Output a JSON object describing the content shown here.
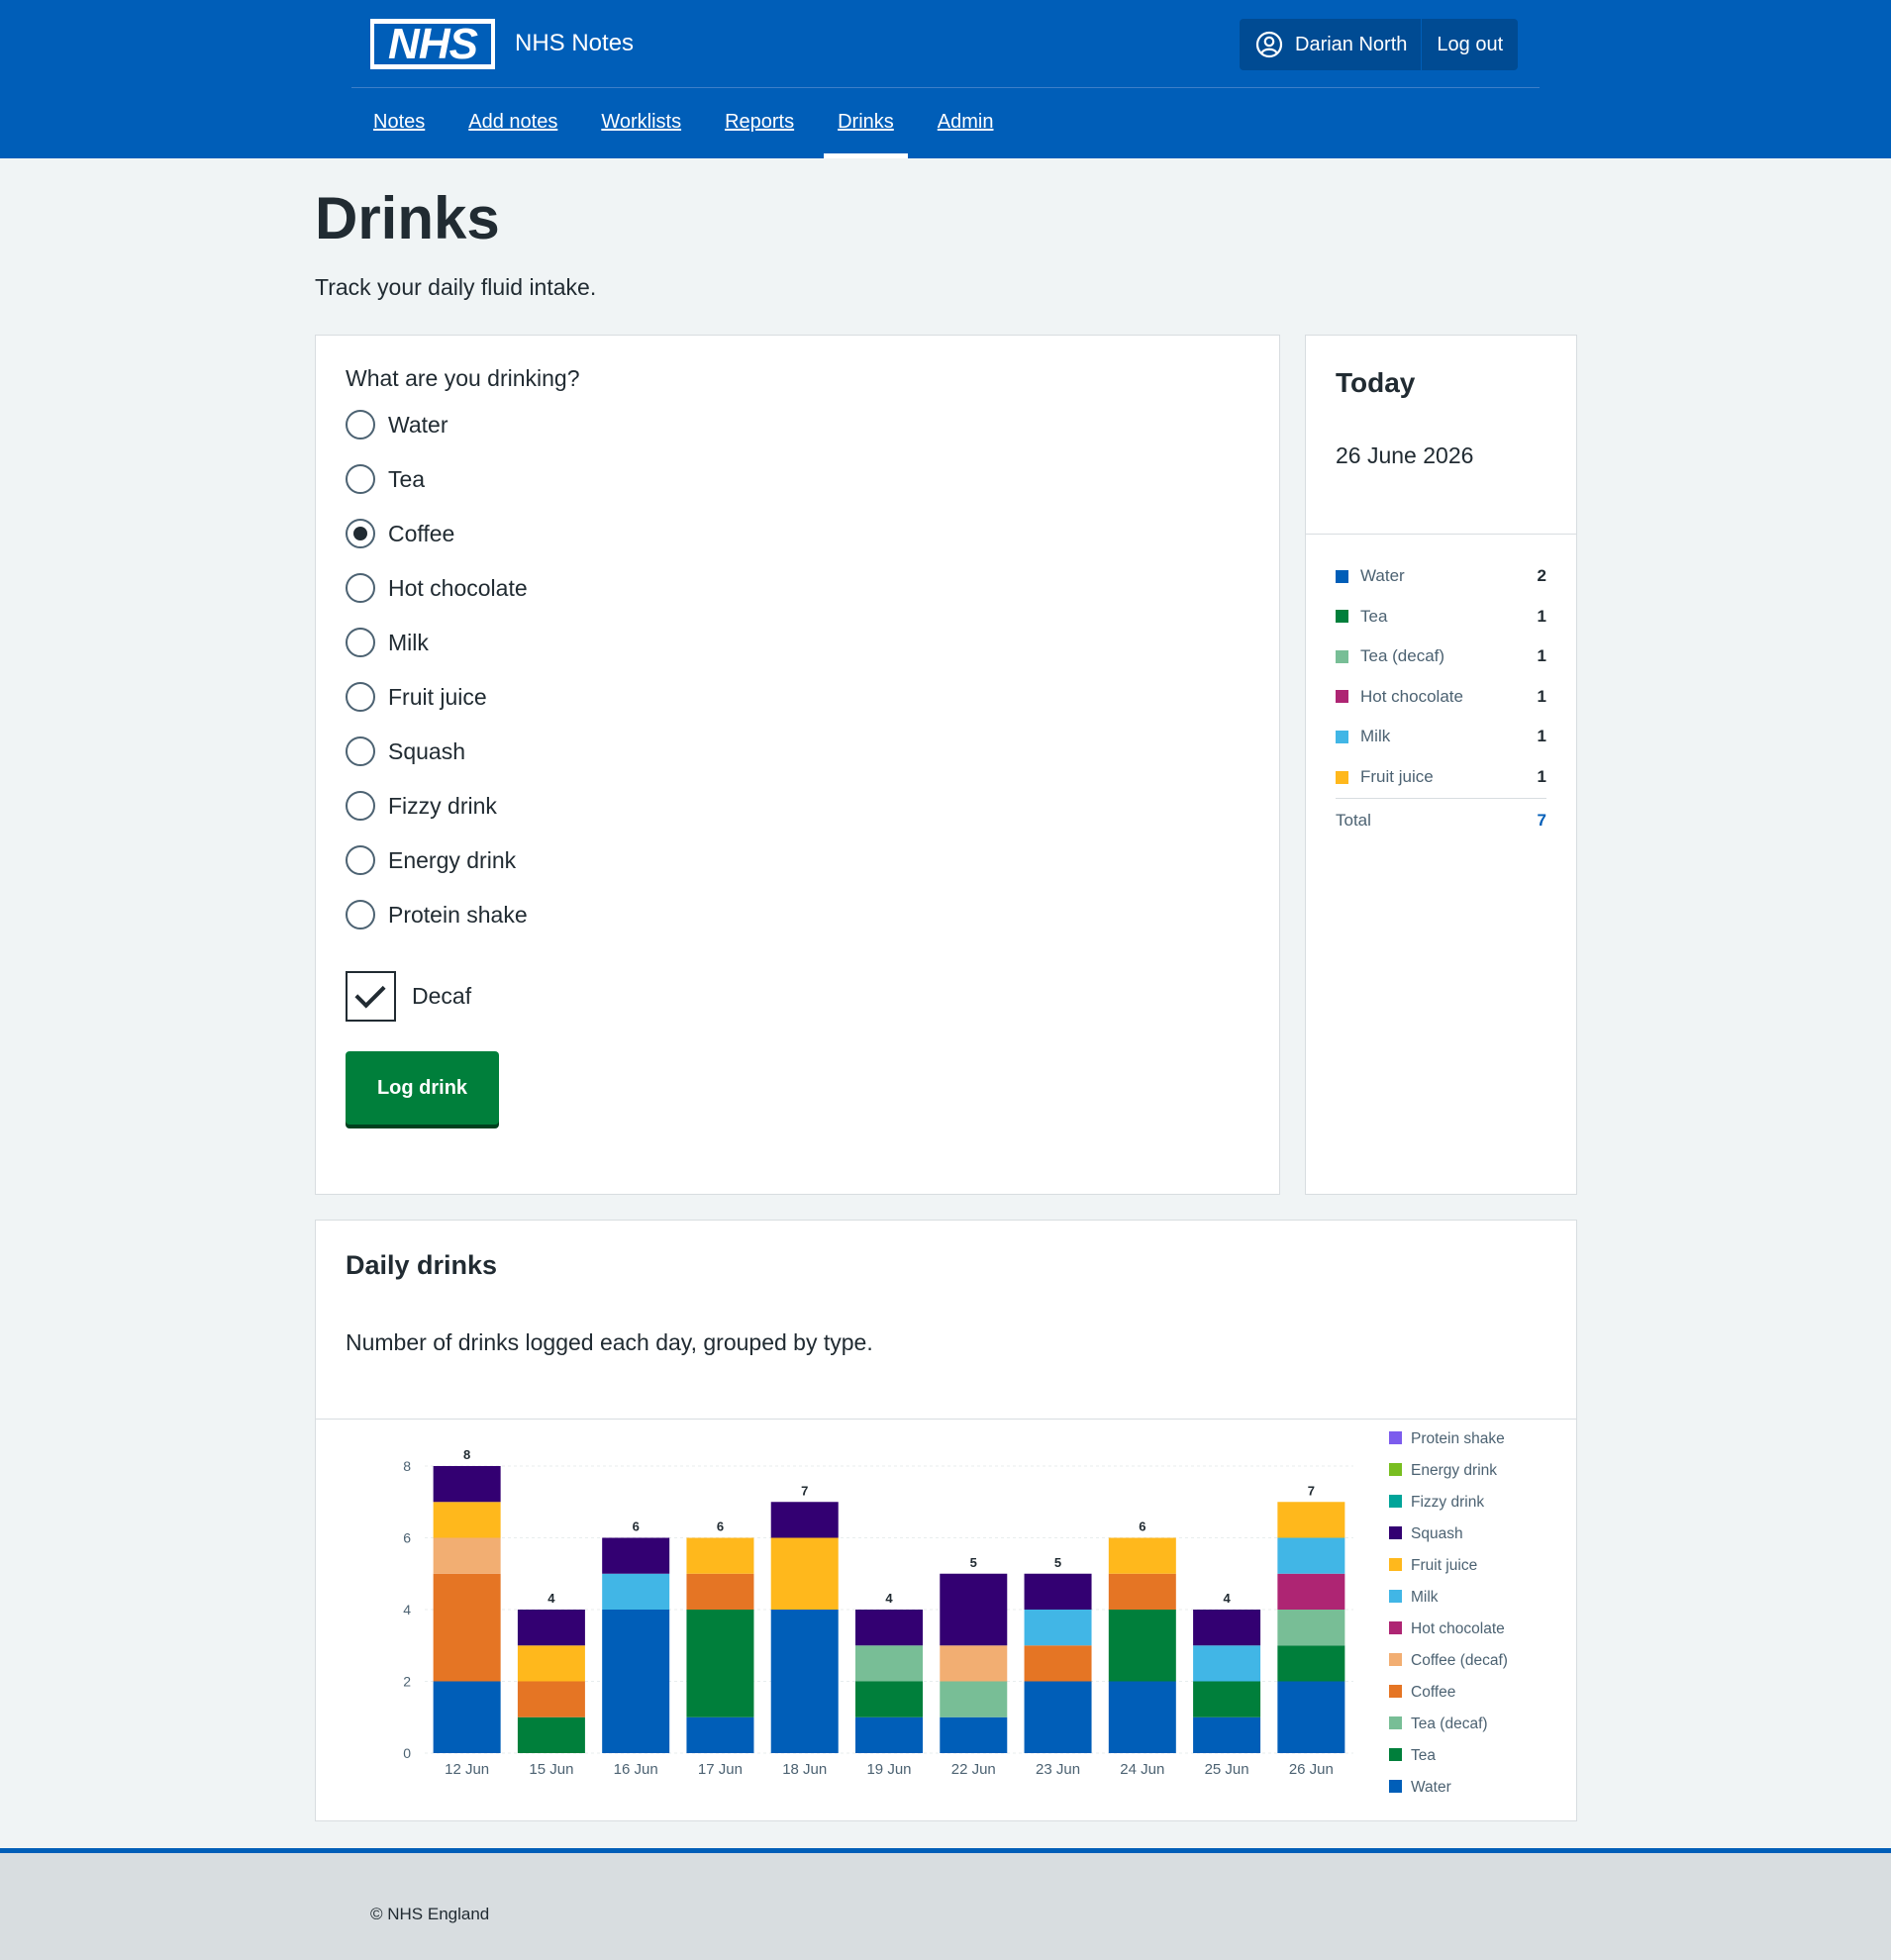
{
  "header": {
    "logo_text": "NHS",
    "service_name": "NHS Notes",
    "user_name": "Darian North",
    "logout_label": "Log out",
    "colors": {
      "brand": "#005eb8"
    }
  },
  "nav": {
    "items": [
      {
        "label": "Notes"
      },
      {
        "label": "Add notes"
      },
      {
        "label": "Worklists"
      },
      {
        "label": "Reports"
      },
      {
        "label": "Drinks",
        "active": true
      },
      {
        "label": "Admin"
      }
    ]
  },
  "page": {
    "title": "Drinks",
    "lede": "Track your daily fluid intake."
  },
  "form": {
    "question": "What are you drinking?",
    "options": [
      {
        "label": "Water",
        "checked": false
      },
      {
        "label": "Tea",
        "checked": false
      },
      {
        "label": "Coffee",
        "checked": true
      },
      {
        "label": "Hot chocolate",
        "checked": false
      },
      {
        "label": "Milk",
        "checked": false
      },
      {
        "label": "Fruit juice",
        "checked": false
      },
      {
        "label": "Squash",
        "checked": false
      },
      {
        "label": "Fizzy drink",
        "checked": false
      },
      {
        "label": "Energy drink",
        "checked": false
      },
      {
        "label": "Protein shake",
        "checked": false
      }
    ],
    "decaf_label": "Decaf",
    "decaf_checked": true,
    "submit_label": "Log drink"
  },
  "today": {
    "title": "Today",
    "date": "26 June 2026",
    "rows": [
      {
        "label": "Water",
        "count": "2",
        "color": "#005eb8"
      },
      {
        "label": "Tea",
        "count": "1",
        "color": "#007f3b"
      },
      {
        "label": "Tea (decaf)",
        "count": "1",
        "color": "#78be96"
      },
      {
        "label": "Hot chocolate",
        "count": "1",
        "color": "#ae2573"
      },
      {
        "label": "Milk",
        "count": "1",
        "color": "#41b6e6"
      },
      {
        "label": "Fruit juice",
        "count": "1",
        "color": "#ffb81c"
      }
    ],
    "total_label": "Total",
    "total_value": "7"
  },
  "chart_section": {
    "title": "Daily drinks",
    "description": "Number of drinks logged each day, grouped by type."
  },
  "chart_data": {
    "type": "bar",
    "stacked": true,
    "categories": [
      "12 Jun",
      "15 Jun",
      "16 Jun",
      "17 Jun",
      "18 Jun",
      "19 Jun",
      "22 Jun",
      "23 Jun",
      "24 Jun",
      "25 Jun",
      "26 Jun"
    ],
    "ylim": [
      0,
      8
    ],
    "yticks": [
      0,
      2,
      4,
      6,
      8
    ],
    "totals": [
      8,
      4,
      6,
      6,
      7,
      4,
      5,
      5,
      6,
      4,
      7
    ],
    "grid": true,
    "legend_position": "right",
    "series": [
      {
        "name": "Water",
        "color": "#005eb8",
        "values": [
          2,
          0,
          4,
          1,
          4,
          1,
          1,
          2,
          2,
          1,
          2
        ]
      },
      {
        "name": "Tea",
        "color": "#007f3b",
        "values": [
          0,
          1,
          0,
          3,
          0,
          1,
          0,
          0,
          2,
          1,
          1
        ]
      },
      {
        "name": "Tea (decaf)",
        "color": "#78be96",
        "values": [
          0,
          0,
          0,
          0,
          0,
          1,
          1,
          0,
          0,
          0,
          1
        ]
      },
      {
        "name": "Coffee",
        "color": "#e57524",
        "values": [
          3,
          1,
          0,
          1,
          0,
          0,
          0,
          1,
          1,
          0,
          0
        ]
      },
      {
        "name": "Coffee (decaf)",
        "color": "#f2ae72",
        "values": [
          1,
          0,
          0,
          0,
          0,
          0,
          1,
          0,
          0,
          0,
          0
        ]
      },
      {
        "name": "Hot chocolate",
        "color": "#ae2573",
        "values": [
          0,
          0,
          0,
          0,
          0,
          0,
          0,
          0,
          0,
          0,
          1
        ]
      },
      {
        "name": "Milk",
        "color": "#41b6e6",
        "values": [
          0,
          0,
          1,
          0,
          0,
          0,
          0,
          1,
          0,
          1,
          1
        ]
      },
      {
        "name": "Fruit juice",
        "color": "#ffb81c",
        "values": [
          1,
          1,
          0,
          1,
          2,
          0,
          0,
          0,
          1,
          0,
          1
        ]
      },
      {
        "name": "Squash",
        "color": "#330072",
        "values": [
          1,
          1,
          1,
          0,
          1,
          1,
          2,
          1,
          0,
          1,
          0
        ]
      },
      {
        "name": "Fizzy drink",
        "color": "#00a499",
        "values": [
          0,
          0,
          0,
          0,
          0,
          0,
          0,
          0,
          0,
          0,
          0
        ]
      },
      {
        "name": "Energy drink",
        "color": "#78be20",
        "values": [
          0,
          0,
          0,
          0,
          0,
          0,
          0,
          0,
          0,
          0,
          0
        ]
      },
      {
        "name": "Protein shake",
        "color": "#7c5ced",
        "values": [
          0,
          0,
          0,
          0,
          0,
          0,
          0,
          0,
          0,
          0,
          0
        ]
      }
    ]
  },
  "footer": {
    "copyright": "© NHS England"
  }
}
